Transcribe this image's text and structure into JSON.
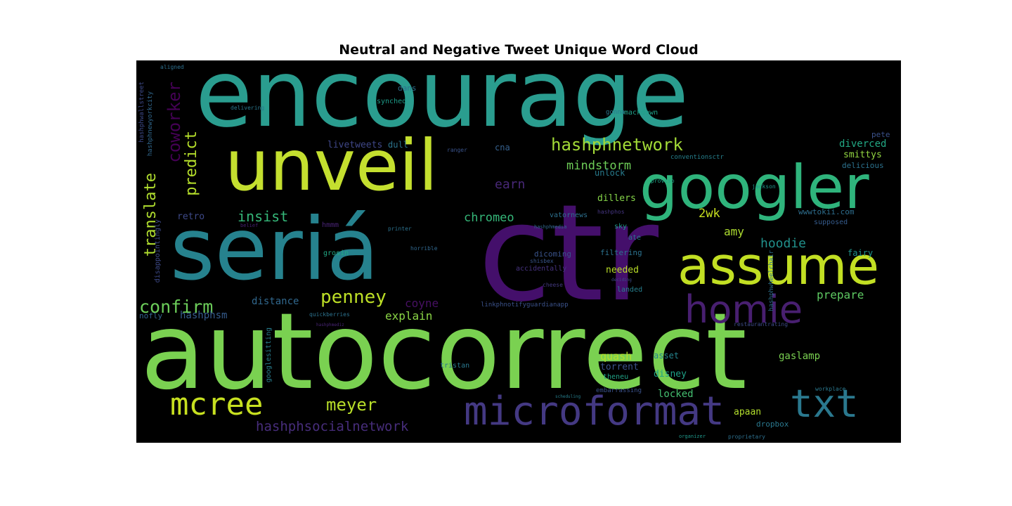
{
  "chart_data": {
    "type": "wordcloud",
    "title": "Neutral and Negative Tweet Unique Word Cloud",
    "background": "#000000",
    "colormap": "viridis",
    "words": [
      {
        "text": "encourage",
        "color": "#2a9d8f"
      },
      {
        "text": "unveil",
        "color": "#c4df2f"
      },
      {
        "text": "seriá",
        "color": "#26828e"
      },
      {
        "text": "ctr",
        "color": "#440f6b"
      },
      {
        "text": "autocorrect",
        "color": "#7ad151"
      },
      {
        "text": "googler",
        "color": "#2fb47c"
      },
      {
        "text": "assume",
        "color": "#c2df23"
      },
      {
        "text": "homie",
        "color": "#481f70"
      },
      {
        "text": "microformat",
        "color": "#443983"
      },
      {
        "text": "txt",
        "color": "#2a788e"
      },
      {
        "text": "mcree",
        "color": "#c7e020"
      },
      {
        "text": "hashphnetwork",
        "color": "#a2da37"
      },
      {
        "text": "confirm",
        "color": "#6ccd5a"
      },
      {
        "text": "penney",
        "color": "#bddf26"
      },
      {
        "text": "coworker",
        "color": "#440154"
      },
      {
        "text": "translate",
        "color": "#b0dd2f"
      },
      {
        "text": "predict",
        "color": "#b5de2b"
      },
      {
        "text": "meyer",
        "color": "#b8de29"
      },
      {
        "text": "hashphsocialnetwork",
        "color": "#472d7b"
      },
      {
        "text": "insist",
        "color": "#35b779"
      },
      {
        "text": "chromeo",
        "color": "#35b779"
      },
      {
        "text": "earn",
        "color": "#482878"
      },
      {
        "text": "mindstorm",
        "color": "#6ece58"
      },
      {
        "text": "2wk",
        "color": "#c8e020"
      },
      {
        "text": "hoodie",
        "color": "#21918c"
      },
      {
        "text": "prepare",
        "color": "#5ec962"
      },
      {
        "text": "amy",
        "color": "#addc30"
      },
      {
        "text": "explain",
        "color": "#8bd646"
      },
      {
        "text": "coyne",
        "color": "#471063"
      },
      {
        "text": "distance",
        "color": "#31688e"
      },
      {
        "text": "hashphsm",
        "color": "#365c8d"
      },
      {
        "text": "diverced",
        "color": "#22a884"
      },
      {
        "text": "smittys",
        "color": "#93d741"
      },
      {
        "text": "delicious",
        "color": "#2c728e"
      },
      {
        "text": "quash",
        "color": "#b5de2b"
      },
      {
        "text": "gaslamp",
        "color": "#7ad151"
      },
      {
        "text": "asset",
        "color": "#25848e"
      },
      {
        "text": "torrent",
        "color": "#3b528b"
      },
      {
        "text": "disney",
        "color": "#1fa187"
      },
      {
        "text": "locked",
        "color": "#44bf70"
      },
      {
        "text": "apaan",
        "color": "#b2dd2d"
      },
      {
        "text": "dropbox",
        "color": "#2a788e"
      },
      {
        "text": "unlock",
        "color": "#287c8e"
      },
      {
        "text": "dillers",
        "color": "#86d549"
      },
      {
        "text": "needed",
        "color": "#bade28"
      },
      {
        "text": "retro",
        "color": "#3e4a89"
      },
      {
        "text": "fairy",
        "color": "#1f948c"
      },
      {
        "text": "supposed",
        "color": "#365c8d"
      },
      {
        "text": "filtering",
        "color": "#2c728e"
      },
      {
        "text": "nofly",
        "color": "#33638d"
      },
      {
        "text": "livetweets",
        "color": "#3f4788"
      },
      {
        "text": "dull",
        "color": "#2b748e"
      },
      {
        "text": "cna",
        "color": "#35608d"
      },
      {
        "text": "dans",
        "color": "#2d708e"
      },
      {
        "text": "synched",
        "color": "#1e9c89"
      },
      {
        "text": "smackdown",
        "color": "#1fa088"
      },
      {
        "text": "tristan",
        "color": "#2a788e"
      },
      {
        "text": "accidentally",
        "color": "#46337f"
      },
      {
        "text": "landed",
        "color": "#277f8e"
      },
      {
        "text": "theneu",
        "color": "#20a386"
      },
      {
        "text": "hmmm",
        "color": "#482475"
      },
      {
        "text": "grosin",
        "color": "#22a884"
      },
      {
        "text": "vatornews",
        "color": "#2d708e"
      },
      {
        "text": "sky",
        "color": "#1f9a8a"
      },
      {
        "text": "ate",
        "color": "#2c728e"
      },
      {
        "text": "hashphos",
        "color": "#453581"
      },
      {
        "text": "hashphmedia",
        "color": "#31688e"
      },
      {
        "text": "wwwtokii.com",
        "color": "#2e6e8e"
      },
      {
        "text": "aligned",
        "color": "#2d708e"
      },
      {
        "text": "shisbex",
        "color": "#39568c"
      },
      {
        "text": "belief",
        "color": "#482173"
      },
      {
        "text": "disappointingly",
        "color": "#3e4a89"
      },
      {
        "text": "googlesitting",
        "color": "#287d8e"
      },
      {
        "text": "dicoming",
        "color": "#3a538b"
      },
      {
        "text": "embarrassing",
        "color": "#3b528b"
      },
      {
        "text": "conventionsctr",
        "color": "#26818e"
      },
      {
        "text": "workplace",
        "color": "#2a788e"
      },
      {
        "text": "organizer",
        "color": "#1f988b"
      },
      {
        "text": "proprietary",
        "color": "#2d708e"
      },
      {
        "text": "restaurantrating",
        "color": "#3e4c8a"
      },
      {
        "text": "delivering",
        "color": "#2a788e"
      },
      {
        "text": "scheduling",
        "color": "#277f8e"
      },
      {
        "text": "deciding",
        "color": "#3e4989"
      },
      {
        "text": "hashphmediz",
        "color": "#482475"
      },
      {
        "text": "quickberries",
        "color": "#2c728e"
      },
      {
        "text": "linkphnotifyguardianapp",
        "color": "#3b528b"
      },
      {
        "text": "hashphnewyorkcity",
        "color": "#31688e"
      },
      {
        "text": "hashphwallstreet",
        "color": "#3e4a89"
      },
      {
        "text": "hashphwheelchair",
        "color": "#2d708e"
      },
      {
        "text": "gonna",
        "color": "#2a788e"
      },
      {
        "text": "pete",
        "color": "#3b528b"
      },
      {
        "text": "jackson",
        "color": "#1f978b"
      },
      {
        "text": "printer",
        "color": "#2c728e"
      },
      {
        "text": "cheese",
        "color": "#44397f"
      },
      {
        "text": "horrible",
        "color": "#31688e"
      },
      {
        "text": "proviso",
        "color": "#20a386"
      },
      {
        "text": "ranger",
        "color": "#3a538b"
      }
    ]
  }
}
